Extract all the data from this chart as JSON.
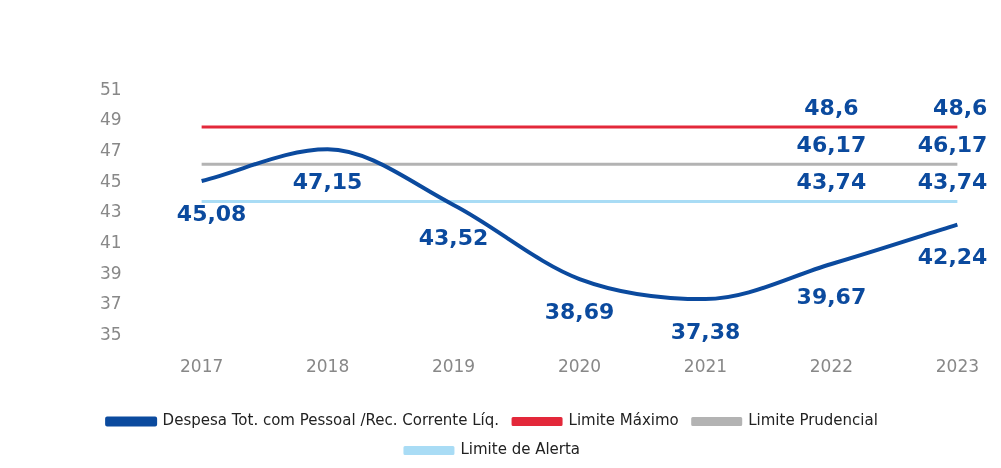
{
  "chart_data": {
    "type": "line",
    "categories": [
      "2017",
      "2018",
      "2019",
      "2020",
      "2021",
      "2022",
      "2023"
    ],
    "series": [
      {
        "name": "Despesa Tot. com Pessoal /Rec. Corrente Líq.",
        "color": "#0b4a9e",
        "values": [
          45.08,
          47.15,
          43.52,
          38.69,
          37.38,
          39.67,
          42.24
        ],
        "value_labels": [
          "45,08",
          "47,15",
          "43,52",
          "38,69",
          "37,38",
          "39,67",
          "42,24"
        ]
      },
      {
        "name": "Limite Máximo",
        "color": "#e3283a",
        "values": [
          48.6,
          48.6,
          48.6,
          48.6,
          48.6,
          48.6,
          48.6
        ],
        "value_labels": [
          null,
          null,
          null,
          null,
          null,
          "48,6",
          "48,6"
        ]
      },
      {
        "name": "Limite Prudencial",
        "color": "#b3b3b3",
        "values": [
          46.17,
          46.17,
          46.17,
          46.17,
          46.17,
          46.17,
          46.17
        ],
        "value_labels": [
          null,
          null,
          null,
          null,
          null,
          "46,17",
          "46,17"
        ]
      },
      {
        "name": "Limite de Alerta",
        "color": "#a9dcf5",
        "values": [
          43.74,
          43.74,
          43.74,
          43.74,
          43.74,
          43.74,
          43.74
        ],
        "value_labels": [
          null,
          null,
          null,
          null,
          null,
          "43,74",
          "43,74"
        ]
      }
    ],
    "ylim": [
      35,
      51
    ],
    "yticks": [
      35,
      37,
      39,
      41,
      43,
      45,
      47,
      49,
      51
    ],
    "legend": "bottom",
    "marker": "none"
  }
}
